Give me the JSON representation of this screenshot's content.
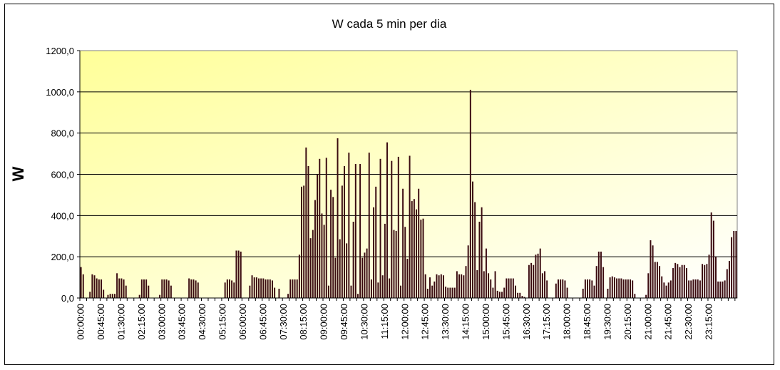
{
  "chart_data": {
    "type": "bar",
    "title": "W cada 5 min per dia",
    "xlabel": "",
    "ylabel": "W",
    "ylim": [
      0,
      1200
    ],
    "yticks": [
      "0,0",
      "200,0",
      "400,0",
      "600,0",
      "800,0",
      "1000,0",
      "1200,0"
    ],
    "grid": true,
    "legend": "none",
    "interval_minutes": 5,
    "xtick_labels": [
      "00:00:00",
      "00:45:00",
      "01:30:00",
      "02:15:00",
      "03:00:00",
      "03:45:00",
      "04:30:00",
      "05:15:00",
      "06:00:00",
      "06:45:00",
      "07:30:00",
      "08:15:00",
      "09:00:00",
      "09:45:00",
      "10:30:00",
      "11:15:00",
      "12:00:00",
      "12:45:00",
      "13:30:00",
      "14:15:00",
      "15:00:00",
      "15:45:00",
      "16:30:00",
      "17:15:00",
      "18:00:00",
      "18:45:00",
      "19:30:00",
      "20:15:00",
      "21:00:00",
      "21:45:00",
      "22:30:00",
      "23:15:00"
    ],
    "values": [
      150,
      115,
      0,
      0,
      30,
      115,
      110,
      95,
      90,
      90,
      40,
      0,
      15,
      20,
      20,
      20,
      120,
      95,
      95,
      90,
      60,
      0,
      0,
      0,
      0,
      0,
      15,
      90,
      90,
      90,
      60,
      0,
      0,
      0,
      0,
      15,
      90,
      90,
      90,
      85,
      60,
      0,
      0,
      0,
      0,
      0,
      0,
      0,
      95,
      90,
      90,
      85,
      75,
      0,
      0,
      0,
      0,
      0,
      0,
      0,
      0,
      0,
      0,
      0,
      75,
      90,
      90,
      85,
      75,
      230,
      230,
      225,
      0,
      0,
      0,
      60,
      110,
      100,
      100,
      95,
      95,
      95,
      90,
      90,
      90,
      85,
      50,
      0,
      45,
      0,
      0,
      0,
      20,
      90,
      90,
      90,
      90,
      210,
      540,
      545,
      730,
      640,
      290,
      330,
      475,
      600,
      675,
      410,
      355,
      680,
      60,
      525,
      490,
      195,
      775,
      285,
      545,
      640,
      265,
      705,
      60,
      370,
      650,
      20,
      650,
      195,
      220,
      240,
      705,
      90,
      440,
      540,
      75,
      675,
      110,
      360,
      755,
      95,
      665,
      330,
      325,
      685,
      60,
      530,
      345,
      190,
      690,
      470,
      480,
      430,
      530,
      380,
      385,
      115,
      45,
      100,
      60,
      80,
      115,
      110,
      115,
      110,
      55,
      50,
      50,
      50,
      50,
      130,
      115,
      115,
      110,
      155,
      255,
      1010,
      565,
      465,
      135,
      370,
      440,
      130,
      240,
      120,
      90,
      50,
      130,
      35,
      30,
      30,
      50,
      95,
      95,
      95,
      95,
      60,
      25,
      25,
      10,
      5,
      0,
      160,
      170,
      160,
      210,
      215,
      240,
      120,
      130,
      85,
      0,
      0,
      0,
      70,
      90,
      90,
      90,
      85,
      50,
      0,
      0,
      0,
      0,
      0,
      0,
      45,
      90,
      90,
      90,
      85,
      60,
      155,
      225,
      225,
      150,
      0,
      45,
      100,
      105,
      100,
      95,
      95,
      95,
      90,
      90,
      90,
      90,
      85,
      20,
      0,
      0,
      0,
      0,
      15,
      120,
      280,
      255,
      175,
      175,
      155,
      105,
      75,
      60,
      75,
      85,
      145,
      170,
      165,
      150,
      160,
      160,
      145,
      85,
      85,
      90,
      90,
      90,
      85,
      165,
      160,
      165,
      210,
      415,
      375,
      200,
      80,
      80,
      80,
      85,
      140,
      180,
      295,
      325,
      325
    ]
  }
}
